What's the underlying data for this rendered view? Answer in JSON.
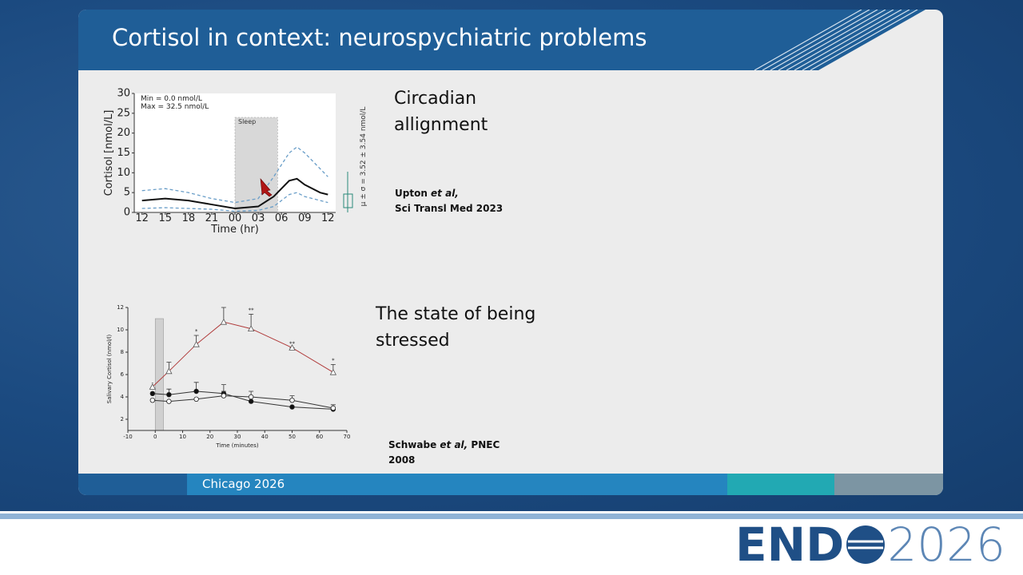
{
  "slide": {
    "title": "Cortisol in context: neurospychiatric problems",
    "sections": [
      {
        "heading": "Circadian allignment",
        "author": "Upton",
        "etal": "et al,",
        "source": "Sci Transl Med 2023"
      },
      {
        "heading": "The state of being stressed",
        "author": "Schwabe",
        "etal": "et al,",
        "source": "PNEC 2008"
      }
    ],
    "footer": "Chicago 2026"
  },
  "logo": {
    "brand": "END",
    "year": "2026"
  },
  "chart_data": [
    {
      "type": "line",
      "ylabel": "Cortisol [nmol/L]",
      "xlabel": "Time (hr)",
      "annotations": [
        "Min = 0.0 nmol/L",
        "Max = 32.5 nmol/L"
      ],
      "side_label": "μ ± σ = 3.52 ± 3.54 nmol/L",
      "shade": [
        12,
        17.5
      ],
      "shade_label": "Sleep",
      "xlim": [
        -1,
        25
      ],
      "ylim": [
        0,
        30
      ],
      "xticks": [
        {
          "value": 0,
          "label": "12"
        },
        {
          "value": 3,
          "label": "15"
        },
        {
          "value": 6,
          "label": "18"
        },
        {
          "value": 9,
          "label": "21"
        },
        {
          "value": 12,
          "label": "00"
        },
        {
          "value": 15,
          "label": "03"
        },
        {
          "value": 18,
          "label": "06"
        },
        {
          "value": 21,
          "label": "09"
        },
        {
          "value": 24,
          "label": "12"
        }
      ],
      "yticks": [
        0,
        5,
        10,
        15,
        20,
        25,
        30
      ],
      "x": [
        0,
        3,
        6,
        9,
        12,
        15,
        17,
        18,
        19,
        20,
        21,
        23,
        24
      ],
      "series": [
        {
          "color": "#6a9ec8",
          "dash": true,
          "values": [
            5.5,
            6,
            5,
            3.5,
            2.5,
            3.5,
            9,
            12,
            15,
            16.5,
            15,
            11,
            9
          ]
        },
        {
          "color": "#6a9ec8",
          "dash": true,
          "values": [
            1,
            1.2,
            1,
            0.8,
            0.3,
            0.5,
            1.5,
            3,
            4.5,
            5,
            4,
            3,
            2.5
          ]
        },
        {
          "color": "#111111",
          "dash": false,
          "values": [
            3,
            3.5,
            3,
            2,
            1,
            1.5,
            4,
            6,
            8,
            8.5,
            7,
            5,
            4.5
          ]
        }
      ]
    },
    {
      "type": "line",
      "ylabel": "Salivary Cortisol (nmol/l)",
      "xlabel": "Time (minutes)",
      "shade": [
        0,
        3
      ],
      "xlim": [
        -10,
        70
      ],
      "ylim": [
        1,
        12
      ],
      "xticks": [
        -10,
        0,
        10,
        20,
        30,
        40,
        50,
        60,
        70
      ],
      "yticks": [
        2,
        4,
        6,
        8,
        10,
        12
      ],
      "x": [
        -1,
        5,
        15,
        25,
        35,
        50,
        65
      ],
      "significance": [
        "-",
        null,
        "*",
        null,
        "**",
        "**",
        "*"
      ],
      "series": [
        {
          "color": "#b03a3a",
          "marker": "triangle",
          "values": [
            4.9,
            6.3,
            8.7,
            10.7,
            10.1,
            8.4,
            6.2
          ],
          "errors": [
            null,
            0.8,
            0.8,
            1.3,
            1.3,
            0,
            0.7
          ]
        },
        {
          "color": "#333333",
          "marker": "filled-circle",
          "values": [
            4.3,
            4.2,
            4.5,
            4.3,
            3.6,
            3.1,
            2.9
          ],
          "errors": [
            null,
            0.5,
            0.8,
            0.8,
            null,
            null,
            null
          ]
        },
        {
          "color": "#333333",
          "marker": "open-circle",
          "values": [
            3.7,
            3.6,
            3.8,
            4.1,
            4.0,
            3.7,
            3.0
          ],
          "errors": [
            null,
            null,
            null,
            0.4,
            0.5,
            0.4,
            0.3
          ]
        }
      ]
    }
  ]
}
